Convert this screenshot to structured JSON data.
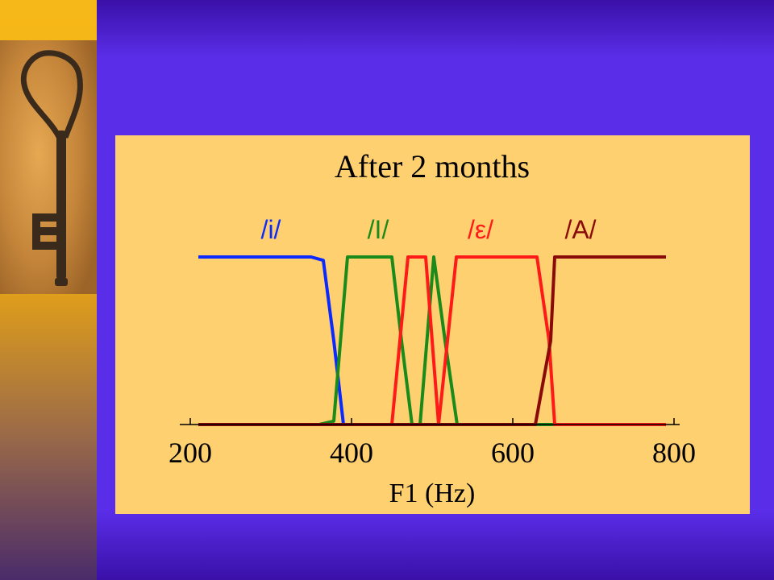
{
  "slide": {
    "background_color": "#5a2ee8",
    "side_band_color": "#f0aa10",
    "image": {
      "icon": "key-icon"
    }
  },
  "chart_data": {
    "type": "line",
    "title": "After 2 months",
    "xlabel": "F1 (Hz)",
    "ylabel": "",
    "xlim": [
      200,
      800
    ],
    "ylim": [
      0,
      1
    ],
    "xticks": [
      "200",
      "400",
      "600",
      "800"
    ],
    "grid": false,
    "legend": "top, inline labels above curves",
    "background": "#ffd070",
    "series": [
      {
        "name": "/i/",
        "color": "#0a2aff",
        "x": [
          210,
          350,
          365,
          378,
          390,
          790
        ],
        "y": [
          1,
          1,
          0.98,
          0.5,
          0,
          0
        ]
      },
      {
        "name": "/I/",
        "color": "#1a8a1a",
        "x": [
          210,
          360,
          378,
          395,
          450,
          462,
          475,
          485,
          502,
          516,
          531,
          790
        ],
        "y": [
          0,
          0,
          0.02,
          1,
          1,
          0.5,
          0,
          0,
          1,
          0.5,
          0,
          0
        ]
      },
      {
        "name": "/ε/",
        "color": "#ff1a1a",
        "x": [
          210,
          360,
          380,
          450,
          470,
          492,
          508,
          530,
          630,
          645,
          652,
          790
        ],
        "y": [
          0,
          0,
          0,
          0,
          1,
          1,
          0,
          1,
          1,
          0.5,
          0,
          0
        ]
      },
      {
        "name": "/A/",
        "color": "#8a0a0a",
        "x": [
          210,
          628,
          647,
          652,
          790
        ],
        "y": [
          0,
          0,
          0.5,
          1,
          1
        ]
      }
    ],
    "labels": [
      {
        "text": "/i/",
        "series": "/i/",
        "x": 300
      },
      {
        "text": "/I/",
        "series": "/I/",
        "x": 433
      },
      {
        "text": "/ε/",
        "series": "/ε/",
        "x": 560
      },
      {
        "text": "/A/",
        "series": "/A/",
        "x": 684
      }
    ]
  }
}
